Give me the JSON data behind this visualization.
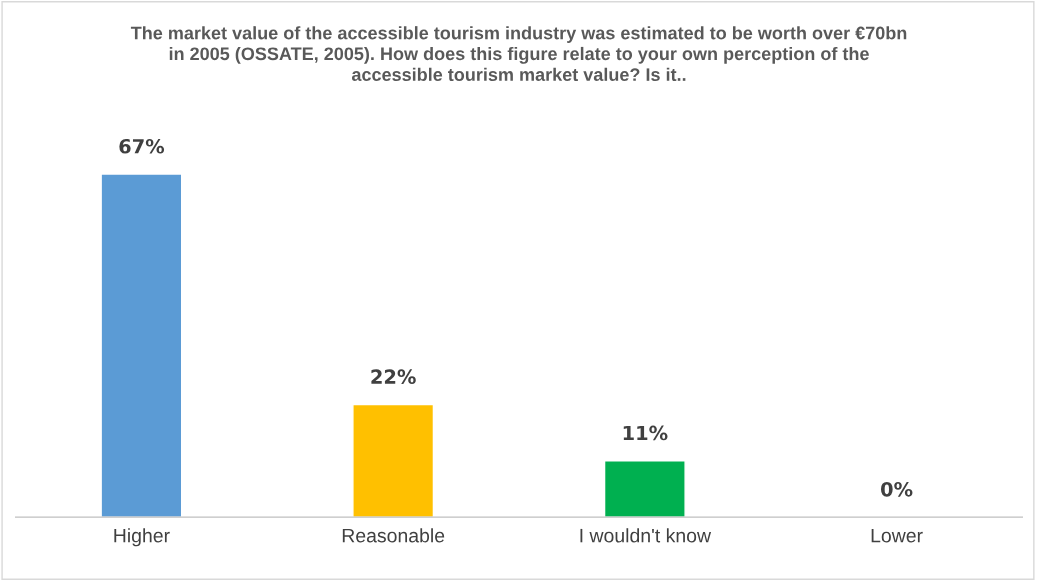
{
  "chart_data": {
    "type": "bar",
    "title": "The market value of the accessible tourism industry was estimated to be worth over €70bn in 2005 (OSSATE, 2005). How does this figure relate to your own perception of the accessible tourism market value? Is it..",
    "categories": [
      "Higher",
      "Reasonable",
      "I wouldn't know",
      "Lower"
    ],
    "values": [
      67,
      22,
      11,
      0
    ],
    "colors": [
      "#5b9bd5",
      "#ffc000",
      "#00b050",
      null
    ],
    "value_labels": [
      "67%",
      "22%",
      "11%",
      "0%"
    ],
    "grid": false,
    "legend": false
  }
}
